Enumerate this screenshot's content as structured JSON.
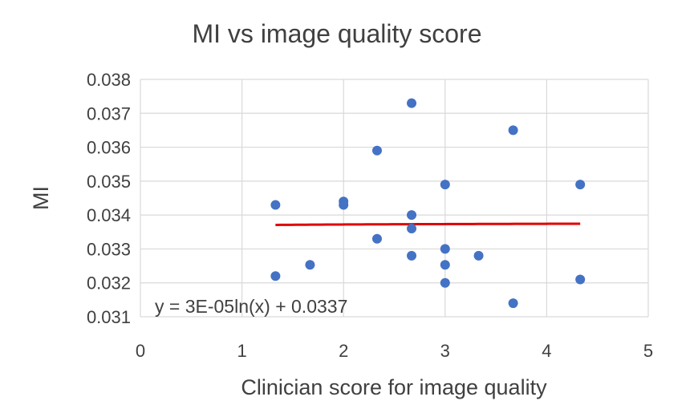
{
  "chart_data": {
    "type": "scatter",
    "title": "MI vs image quality score",
    "xlabel": "Clinician score for image quality",
    "ylabel": "MI",
    "xlim": [
      0,
      5
    ],
    "ylim": [
      0.031,
      0.038
    ],
    "x_ticks": [
      "0",
      "1",
      "2",
      "3",
      "4",
      "5"
    ],
    "y_ticks": [
      "0.031",
      "0.032",
      "0.033",
      "0.034",
      "0.035",
      "0.036",
      "0.037",
      "0.038"
    ],
    "grid": true,
    "series": [
      {
        "color": "#4472c4",
        "points": [
          {
            "x": 1.33,
            "y": 0.0343
          },
          {
            "x": 1.33,
            "y": 0.0322
          },
          {
            "x": 1.67,
            "y": 0.03253
          },
          {
            "x": 2.0,
            "y": 0.0344
          },
          {
            "x": 2.0,
            "y": 0.0343
          },
          {
            "x": 2.33,
            "y": 0.0359
          },
          {
            "x": 2.33,
            "y": 0.0333
          },
          {
            "x": 2.67,
            "y": 0.0373
          },
          {
            "x": 2.67,
            "y": 0.034
          },
          {
            "x": 2.67,
            "y": 0.0336
          },
          {
            "x": 2.67,
            "y": 0.0328
          },
          {
            "x": 3.0,
            "y": 0.0349
          },
          {
            "x": 3.0,
            "y": 0.033
          },
          {
            "x": 3.0,
            "y": 0.03253
          },
          {
            "x": 3.0,
            "y": 0.032
          },
          {
            "x": 3.33,
            "y": 0.0328
          },
          {
            "x": 3.67,
            "y": 0.0365
          },
          {
            "x": 3.67,
            "y": 0.0314
          },
          {
            "x": 4.33,
            "y": 0.0349
          },
          {
            "x": 4.33,
            "y": 0.0321
          }
        ]
      }
    ],
    "trendline": {
      "type": "logarithmic",
      "a": 3e-05,
      "b": 0.0337,
      "x_range": [
        1.33,
        4.33
      ],
      "color": "#e00000",
      "equation_label": "y = 3E-05ln(x) + 0.0337"
    }
  }
}
